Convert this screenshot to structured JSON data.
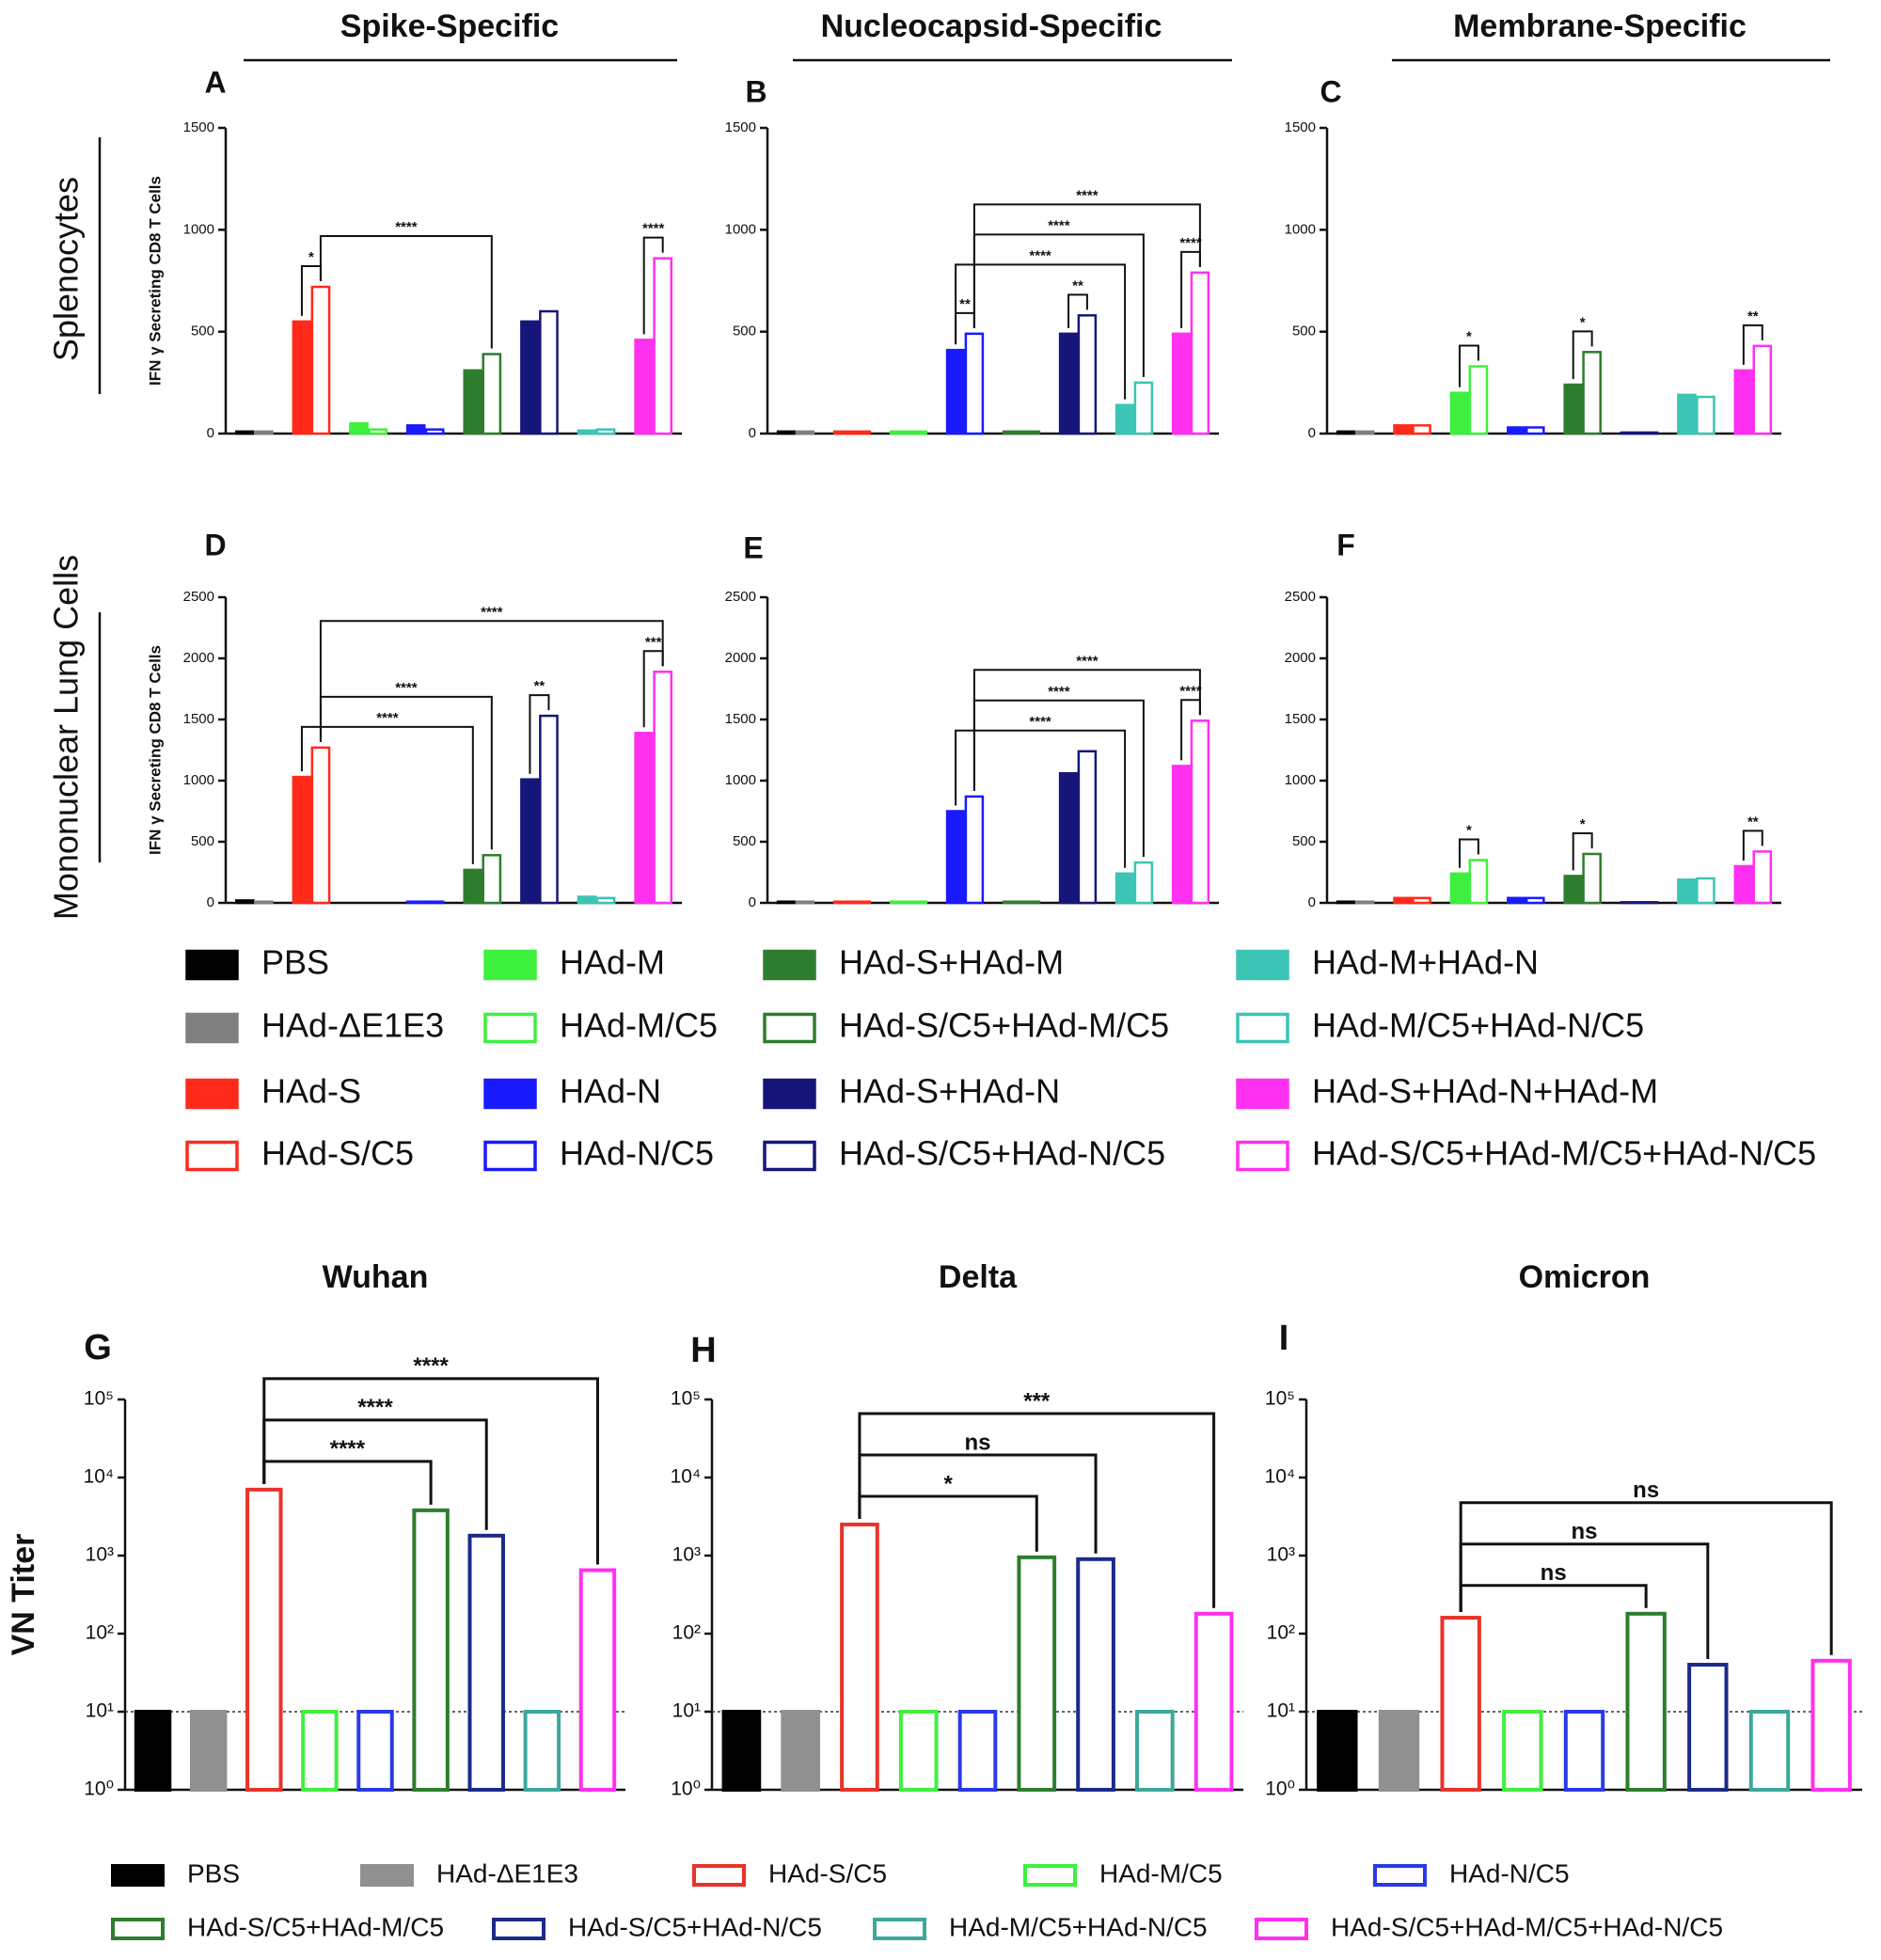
{
  "column_titles": [
    "Spike-Specific",
    "Nucleocapsid-Specific",
    "Membrane-Specific"
  ],
  "row_labels": [
    "Splenocytes",
    "Mononuclear Lung Cells"
  ],
  "legends": [
    {
      "entries": [
        {
          "name": "PBS",
          "color": "#000000",
          "hollow": false
        },
        {
          "name": "HAd-ΔE1E3",
          "color": "#808080",
          "hollow": false
        },
        {
          "name": "HAd-S",
          "color": "#ff2a1a",
          "hollow": false
        },
        {
          "name": "HAd-S/C5",
          "color": "#ff2a1a",
          "hollow": true
        },
        {
          "name": "HAd-M",
          "color": "#3ef03e",
          "hollow": false
        },
        {
          "name": "HAd-M/C5",
          "color": "#3ef03e",
          "hollow": true
        },
        {
          "name": "HAd-N",
          "color": "#1a1aff",
          "hollow": false
        },
        {
          "name": "HAd-N/C5",
          "color": "#1a1aff",
          "hollow": true
        },
        {
          "name": "HAd-S+HAd-M",
          "color": "#2e7d2e",
          "hollow": false
        },
        {
          "name": "HAd-S/C5+HAd-M/C5",
          "color": "#2e7d2e",
          "hollow": true
        },
        {
          "name": "HAd-S+HAd-N",
          "color": "#16167a",
          "hollow": false
        },
        {
          "name": "HAd-S/C5+HAd-N/C5",
          "color": "#16167a",
          "hollow": true
        },
        {
          "name": "HAd-M+HAd-N",
          "color": "#3cc4b4",
          "hollow": false
        },
        {
          "name": "HAd-M/C5+HAd-N/C5",
          "color": "#3cc4b4",
          "hollow": true
        },
        {
          "name": "HAd-S+HAd-N+HAd-M",
          "color": "#ff30f0",
          "hollow": false
        },
        {
          "name": "HAd-S/C5+HAd-M/C5+HAd-N/C5",
          "color": "#ff30f0",
          "hollow": true
        }
      ]
    },
    {
      "entries": [
        {
          "name": "PBS",
          "color": "#000000",
          "hollow": false
        },
        {
          "name": "HAd-ΔE1E3",
          "color": "#909090",
          "hollow": false
        },
        {
          "name": "HAd-S/C5",
          "color": "#e8342a",
          "hollow": true
        },
        {
          "name": "HAd-M/C5",
          "color": "#3ef03e",
          "hollow": true
        },
        {
          "name": "HAd-N/C5",
          "color": "#2a3ae8",
          "hollow": true
        },
        {
          "name": "HAd-S/C5+HAd-M/C5",
          "color": "#2e7d2e",
          "hollow": true
        },
        {
          "name": "HAd-S/C5+HAd-N/C5",
          "color": "#1c2a8a",
          "hollow": true
        },
        {
          "name": "HAd-M/C5+HAd-N/C5",
          "color": "#3ca89a",
          "hollow": true
        },
        {
          "name": "HAd-S/C5+HAd-M/C5+HAd-N/C5",
          "color": "#ff30f0",
          "hollow": true
        }
      ]
    }
  ],
  "chart_data": [
    {
      "type": "bar",
      "label": "A",
      "ylabel": "IFN γ Secreting CD8 T Cells",
      "ylim": [
        0,
        1500
      ],
      "yticks": [
        0,
        500,
        1000,
        1500
      ],
      "values": [
        10,
        10,
        550,
        720,
        50,
        20,
        40,
        20,
        310,
        390,
        550,
        600,
        15,
        20,
        460,
        860
      ],
      "annotations": [
        {
          "from": 2,
          "to": 3,
          "label": "*"
        },
        {
          "from": 3,
          "to": 9,
          "label": "****"
        },
        {
          "from": 14,
          "to": 15,
          "label": "****"
        }
      ]
    },
    {
      "type": "bar",
      "label": "B",
      "ylim": [
        0,
        1500
      ],
      "yticks": [
        0,
        500,
        1000,
        1500
      ],
      "values": [
        10,
        10,
        10,
        10,
        10,
        10,
        410,
        490,
        10,
        10,
        490,
        580,
        140,
        250,
        490,
        790
      ],
      "annotations": [
        {
          "from": 6,
          "to": 7,
          "label": "**"
        },
        {
          "from": 10,
          "to": 11,
          "label": "**"
        },
        {
          "from": 14,
          "to": 15,
          "label": "****"
        },
        {
          "from": 6,
          "to": 12,
          "label": "****"
        },
        {
          "from": 7,
          "to": 13,
          "label": "****"
        },
        {
          "from": 7,
          "to": 15,
          "label": "****"
        }
      ]
    },
    {
      "type": "bar",
      "label": "C",
      "ylim": [
        0,
        1500
      ],
      "yticks": [
        0,
        500,
        1000,
        1500
      ],
      "values": [
        10,
        10,
        40,
        40,
        200,
        330,
        30,
        30,
        240,
        400,
        5,
        5,
        190,
        180,
        310,
        430
      ],
      "annotations": [
        {
          "from": 4,
          "to": 5,
          "label": "*"
        },
        {
          "from": 8,
          "to": 9,
          "label": "*"
        },
        {
          "from": 14,
          "to": 15,
          "label": "**"
        }
      ]
    },
    {
      "type": "bar",
      "label": "D",
      "ylabel": "IFN γ Secreting CD8 T Cells",
      "ylim": [
        0,
        2500
      ],
      "yticks": [
        0,
        500,
        1000,
        1500,
        2000,
        2500
      ],
      "values": [
        20,
        10,
        1030,
        1270,
        null,
        null,
        10,
        10,
        270,
        390,
        1010,
        1530,
        50,
        40,
        1390,
        1890
      ],
      "annotations": [
        {
          "from": 10,
          "to": 11,
          "label": "**"
        },
        {
          "from": 14,
          "to": 15,
          "label": "***"
        },
        {
          "from": 2,
          "to": 8,
          "label": "****"
        },
        {
          "from": 3,
          "to": 9,
          "label": "****"
        },
        {
          "from": 3,
          "to": 15,
          "label": "****"
        }
      ]
    },
    {
      "type": "bar",
      "label": "E",
      "ylim": [
        0,
        2500
      ],
      "yticks": [
        0,
        500,
        1000,
        1500,
        2000,
        2500
      ],
      "values": [
        10,
        10,
        10,
        10,
        10,
        10,
        750,
        870,
        10,
        10,
        1060,
        1240,
        240,
        330,
        1120,
        1490
      ],
      "annotations": [
        {
          "from": 14,
          "to": 15,
          "label": "****"
        },
        {
          "from": 6,
          "to": 12,
          "label": "****"
        },
        {
          "from": 7,
          "to": 13,
          "label": "****"
        },
        {
          "from": 7,
          "to": 15,
          "label": "****"
        }
      ]
    },
    {
      "type": "bar",
      "label": "F",
      "ylim": [
        0,
        2500
      ],
      "yticks": [
        0,
        500,
        1000,
        1500,
        2000,
        2500
      ],
      "values": [
        10,
        10,
        40,
        40,
        240,
        350,
        40,
        40,
        220,
        400,
        5,
        5,
        190,
        200,
        300,
        420
      ],
      "annotations": [
        {
          "from": 4,
          "to": 5,
          "label": "*"
        },
        {
          "from": 8,
          "to": 9,
          "label": "*"
        },
        {
          "from": 14,
          "to": 15,
          "label": "**"
        }
      ]
    },
    {
      "type": "bar",
      "label": "G",
      "title": "Wuhan",
      "ylabel": "VN Titer",
      "log": true,
      "threshold": 10,
      "ylim": [
        1,
        100000
      ],
      "yticks": [
        {
          "value": 1,
          "label": "10⁰"
        },
        {
          "value": 10,
          "label": "10¹"
        },
        {
          "value": 100,
          "label": "10²"
        },
        {
          "value": 1000,
          "label": "10³"
        },
        {
          "value": 10000,
          "label": "10⁴"
        },
        {
          "value": 100000,
          "label": "10⁵"
        }
      ],
      "values": [
        10,
        10,
        7000,
        10,
        10,
        3800,
        1800,
        10,
        650
      ],
      "annotations": [
        {
          "from": 2,
          "to": 5,
          "label": "****"
        },
        {
          "from": 2,
          "to": 6,
          "label": "****"
        },
        {
          "from": 2,
          "to": 8,
          "label": "****"
        }
      ]
    },
    {
      "type": "bar",
      "label": "H",
      "title": "Delta",
      "log": true,
      "threshold": 10,
      "ylim": [
        1,
        100000
      ],
      "yticks": [
        {
          "value": 1,
          "label": "10⁰"
        },
        {
          "value": 10,
          "label": "10¹"
        },
        {
          "value": 100,
          "label": "10²"
        },
        {
          "value": 1000,
          "label": "10³"
        },
        {
          "value": 10000,
          "label": "10⁴"
        },
        {
          "value": 100000,
          "label": "10⁵"
        }
      ],
      "values": [
        10,
        10,
        2500,
        10,
        10,
        950,
        900,
        10,
        180
      ],
      "annotations": [
        {
          "from": 2,
          "to": 5,
          "label": "*"
        },
        {
          "from": 2,
          "to": 6,
          "label": "ns"
        },
        {
          "from": 2,
          "to": 8,
          "label": "***"
        }
      ]
    },
    {
      "type": "bar",
      "label": "I",
      "title": "Omicron",
      "log": true,
      "threshold": 10,
      "ylim": [
        1,
        100000
      ],
      "yticks": [
        {
          "value": 1,
          "label": "10⁰"
        },
        {
          "value": 10,
          "label": "10¹"
        },
        {
          "value": 100,
          "label": "10²"
        },
        {
          "value": 1000,
          "label": "10³"
        },
        {
          "value": 10000,
          "label": "10⁴"
        },
        {
          "value": 100000,
          "label": "10⁵"
        }
      ],
      "values": [
        10,
        10,
        160,
        10,
        10,
        180,
        40,
        10,
        45
      ],
      "annotations": [
        {
          "from": 2,
          "to": 5,
          "label": "ns"
        },
        {
          "from": 2,
          "to": 6,
          "label": "ns"
        },
        {
          "from": 2,
          "to": 8,
          "label": "ns"
        }
      ]
    }
  ]
}
